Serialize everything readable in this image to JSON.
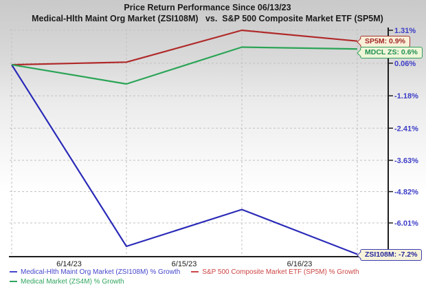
{
  "title": {
    "line1": "Price Return Performance Since 06/13/23",
    "line2": "Medical-Hlth Maint Org Market (ZSI108M)   vs.  S&P 500 Composite Market ETF (SP5M)"
  },
  "chart_data": {
    "type": "line",
    "x_dates": [
      "6/13/23",
      "6/14/23",
      "6/15/23",
      "6/16/23"
    ],
    "x_axis_labels": [
      "6/14/23",
      "6/15/23",
      "6/16/23"
    ],
    "y_tick_labels": [
      "1.31%",
      "0.06%",
      "-1.18%",
      "-2.41%",
      "-3.63%",
      "-4.82%",
      "-6.01%"
    ],
    "y_tick_values": [
      1.31,
      0.06,
      -1.18,
      -2.41,
      -3.63,
      -4.82,
      -6.01
    ],
    "ylim": [
      -7.4,
      1.31
    ],
    "grid": true,
    "legend_position": "bottom",
    "tick_label_color": "#3c3cc6",
    "series": [
      {
        "name": "Medical-Hlth Maint Org Market (ZSI108M) % Growth",
        "ticker": "ZSI108M",
        "color": "#2a2ab8",
        "legend_color": "#4545cc",
        "values": [
          0,
          -6.9,
          -5.5,
          -7.2
        ],
        "end_label": "ZSI108M: -7.2%",
        "end_value": "-7.2%"
      },
      {
        "name": "S&P 500 Composite Market ETF (SP5M) % Growth",
        "ticker": "SP5M",
        "color": "#b02828",
        "legend_color": "#cc4444",
        "values": [
          0,
          0.1,
          1.31,
          0.9
        ],
        "end_label": "SP5M: 0.9%",
        "end_value": "0.9%"
      },
      {
        "name": "Medical Market (ZS4M) % Growth",
        "ticker": "ZS4M",
        "color": "#2aa456",
        "legend_color": "#2fa45e",
        "values": [
          0,
          -0.73,
          0.67,
          0.6
        ],
        "end_label": "MDCL ZS: 0.6%",
        "end_value": "0.6%"
      }
    ]
  }
}
